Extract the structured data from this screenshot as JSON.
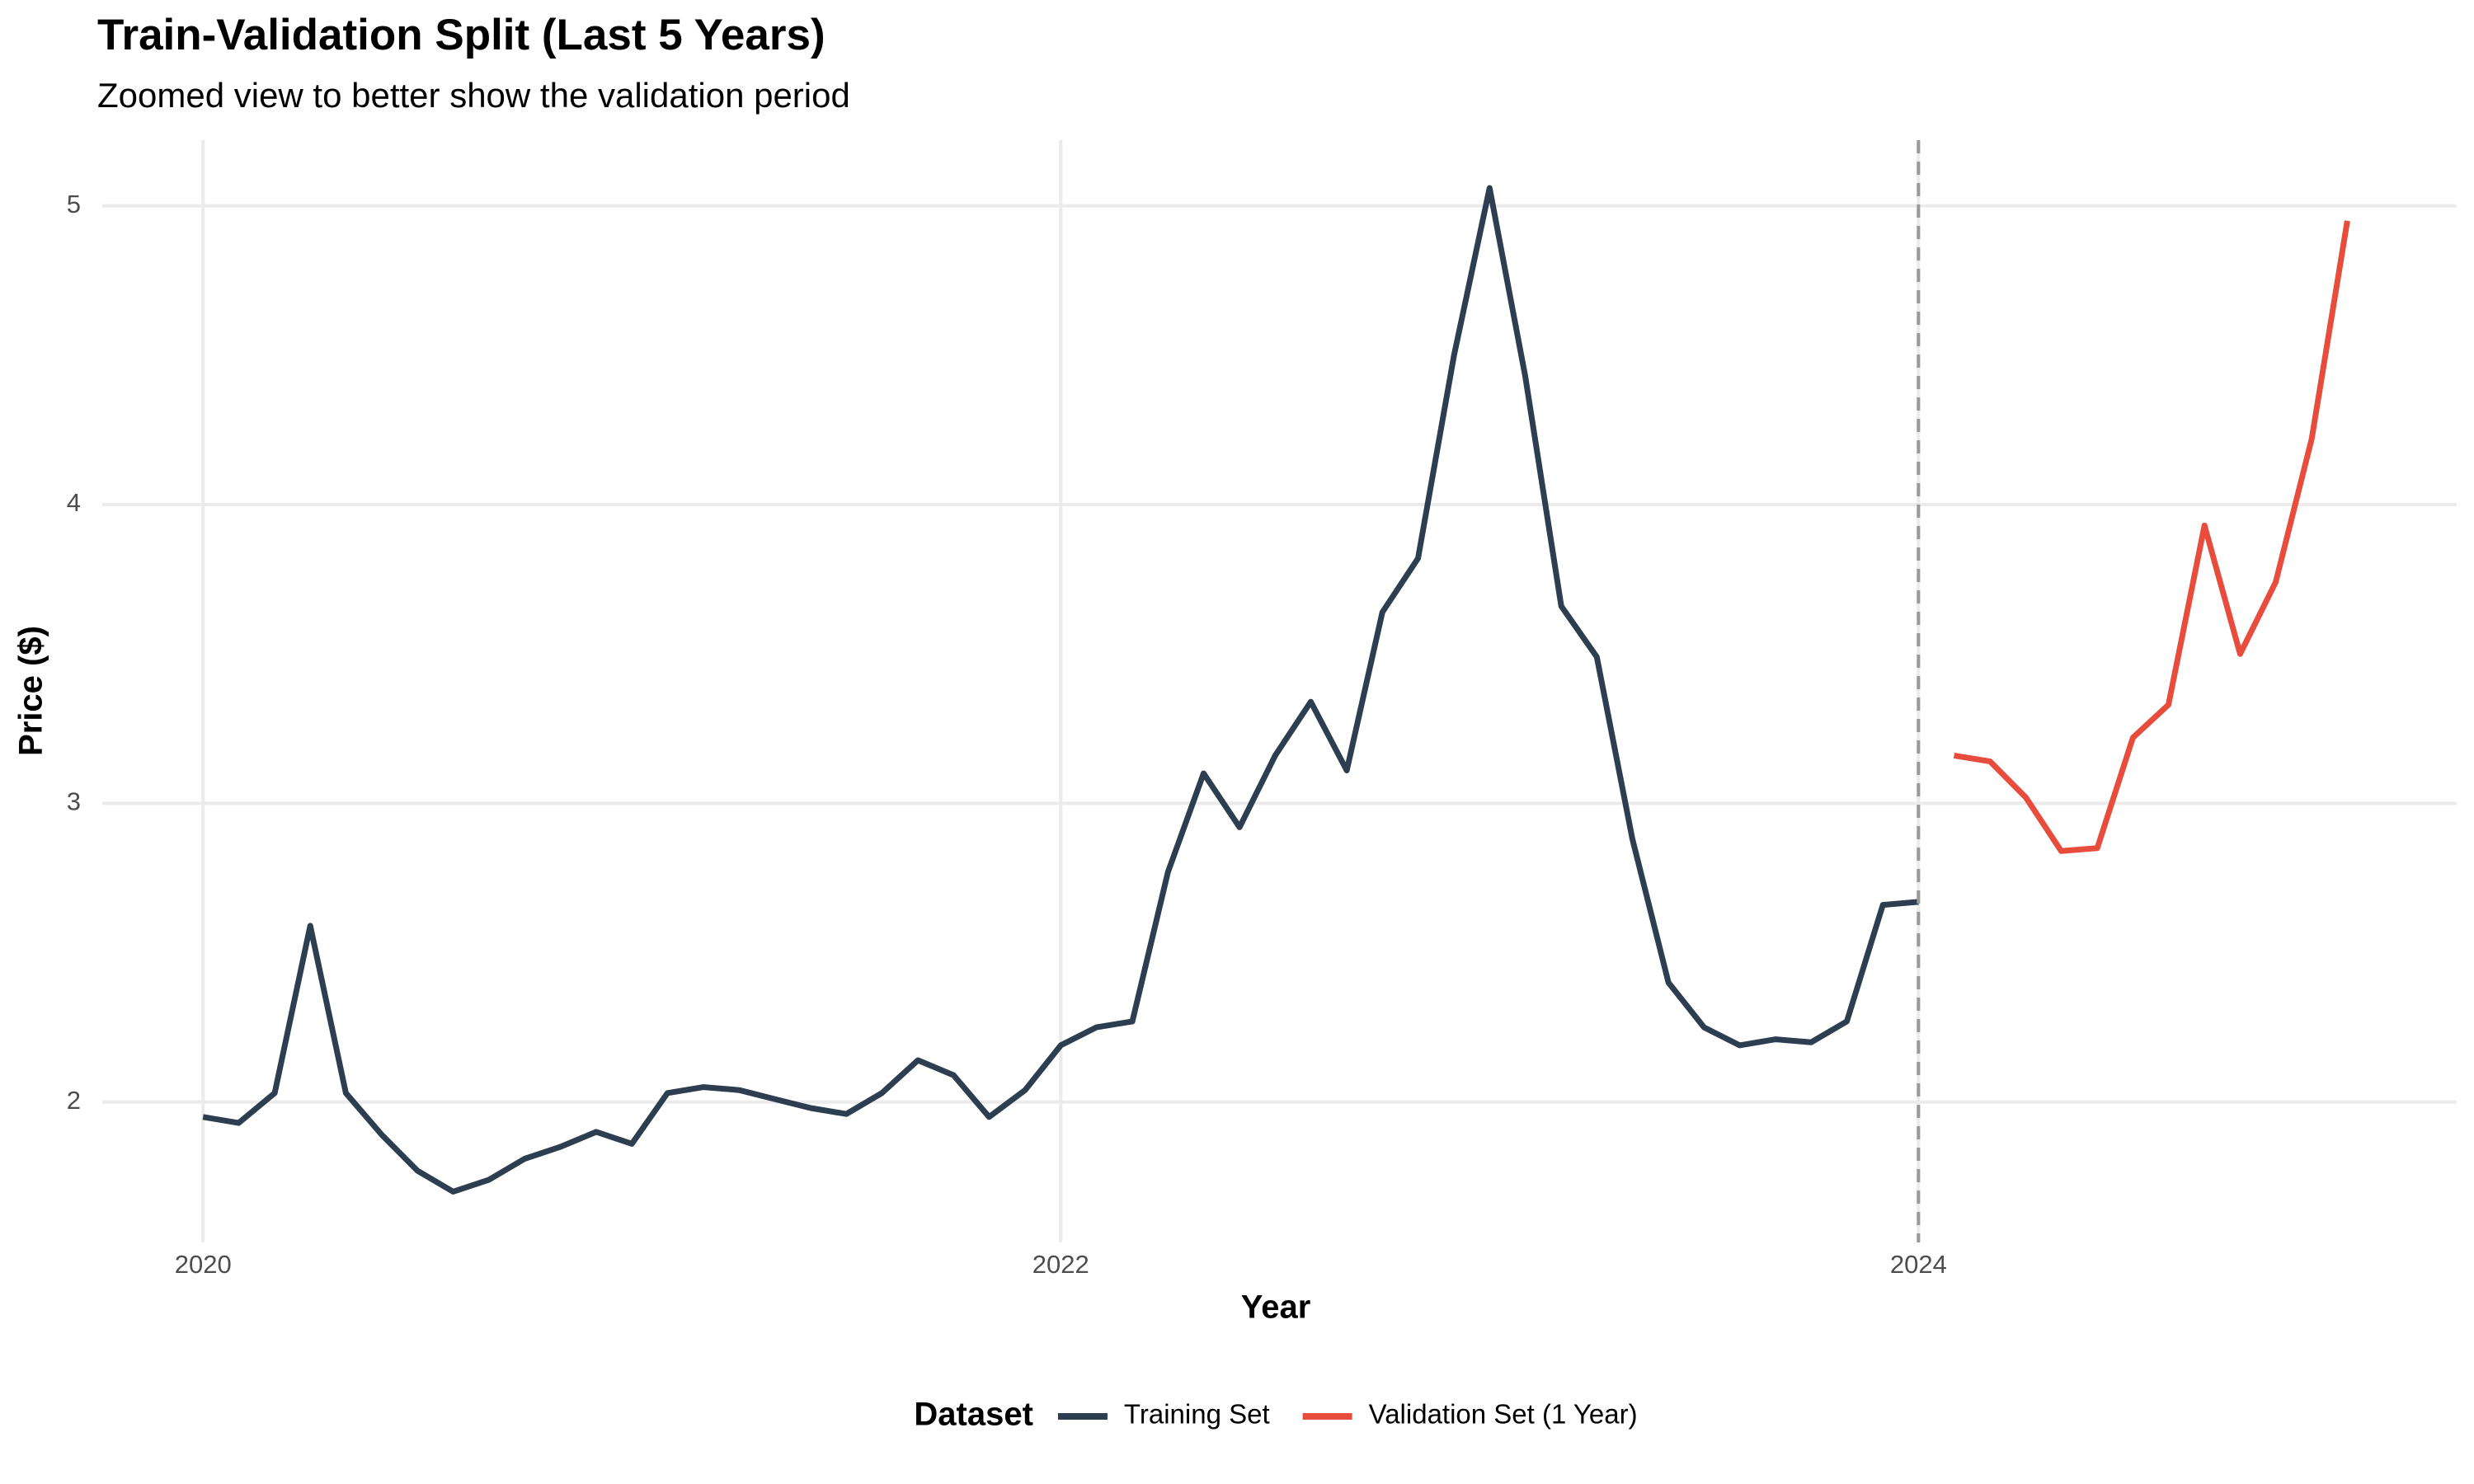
{
  "chart_data": {
    "type": "line",
    "title": "Train-Validation Split (Last 5 Years)",
    "subtitle": "Zoomed view to better show the validation period",
    "x_label": "Year",
    "y_label": "Price ($)",
    "legend_title": "Dataset",
    "legend_position": "bottom",
    "xlim": [
      2019.765,
      2025.255
    ],
    "ylim": [
      1.53,
      5.22
    ],
    "xticks": [
      2020,
      2022,
      2024
    ],
    "yticks": [
      2,
      3,
      4,
      5
    ],
    "grid": true,
    "vline": 2024,
    "series": [
      {
        "name": "Training Set",
        "color": "#2c3e50",
        "x": [
          2020,
          2020.083,
          2020.167,
          2020.25,
          2020.333,
          2020.417,
          2020.5,
          2020.583,
          2020.667,
          2020.75,
          2020.833,
          2020.917,
          2021,
          2021.083,
          2021.167,
          2021.25,
          2021.333,
          2021.417,
          2021.5,
          2021.583,
          2021.667,
          2021.75,
          2021.833,
          2021.917,
          2022,
          2022.083,
          2022.167,
          2022.25,
          2022.333,
          2022.417,
          2022.5,
          2022.583,
          2022.667,
          2022.75,
          2022.833,
          2022.917,
          2023,
          2023.083,
          2023.167,
          2023.25,
          2023.333,
          2023.417,
          2023.5,
          2023.583,
          2023.667,
          2023.75,
          2023.833,
          2023.917,
          2024
        ],
        "values": [
          1.95,
          1.93,
          2.03,
          2.59,
          2.03,
          1.89,
          1.77,
          1.7,
          1.74,
          1.81,
          1.85,
          1.9,
          1.86,
          2.03,
          2.05,
          2.04,
          2.01,
          1.98,
          1.96,
          2.03,
          2.14,
          2.09,
          1.95,
          2.04,
          2.19,
          2.25,
          2.27,
          2.77,
          3.1,
          2.92,
          3.16,
          3.34,
          3.11,
          3.64,
          3.82,
          4.5,
          5.06,
          4.43,
          3.66,
          3.49,
          2.88,
          2.4,
          2.25,
          2.19,
          2.21,
          2.2,
          2.27,
          2.66,
          2.67
        ]
      },
      {
        "name": "Validation Set (1 Year)",
        "color": "#e74c3c",
        "x": [
          2024.083,
          2024.167,
          2024.25,
          2024.333,
          2024.417,
          2024.5,
          2024.583,
          2024.667,
          2024.75,
          2024.833,
          2024.917,
          2025
        ],
        "values": [
          3.16,
          3.14,
          3.02,
          2.84,
          2.85,
          3.22,
          3.33,
          3.93,
          3.5,
          3.74,
          4.22,
          4.95
        ]
      }
    ]
  }
}
